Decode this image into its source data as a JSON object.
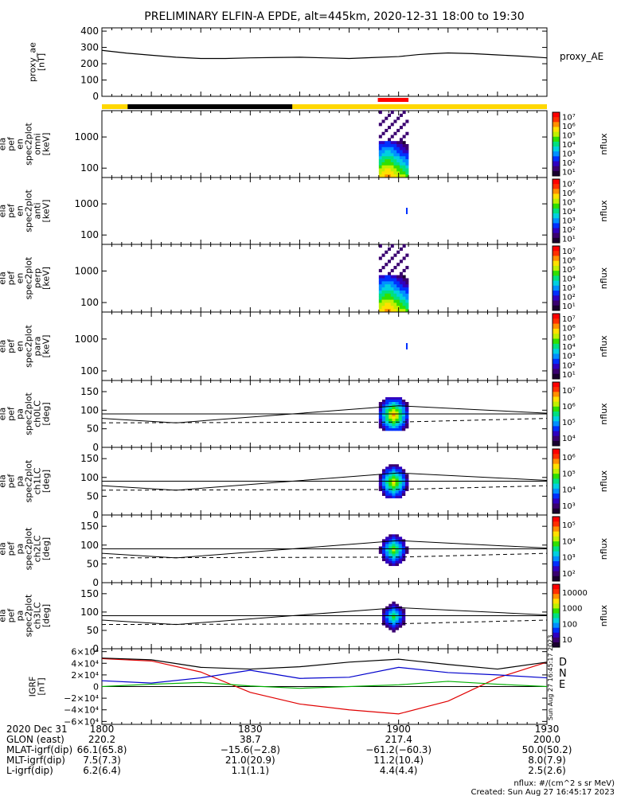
{
  "title": "PRELIMINARY ELFIN-A EPDE, alt=445km, 2020-12-31 18:00 to 19:30",
  "colors": {
    "quality_yellow": "#ffd700",
    "quality_black": "#000000",
    "science_red": "#ff0000",
    "igrf_D": "#e00000",
    "igrf_N": "#0000cc",
    "igrf_E": "#00b000",
    "colorbar": [
      "#1a0030",
      "#3a0070",
      "#3000c0",
      "#0030ff",
      "#0090ff",
      "#00d0e0",
      "#00e080",
      "#30e000",
      "#c0f000",
      "#ffe000",
      "#ff9000",
      "#ff3000",
      "#ff0000"
    ]
  },
  "chart_data": [
    {
      "type": "line",
      "panel": "proxy_ae",
      "ylabel": "proxy_ae [nT]",
      "legend": "proxy_AE",
      "ylim": [
        0,
        420
      ],
      "yticks": [
        "400",
        "300",
        "200",
        "100",
        "0"
      ],
      "x_minutes": [
        0,
        5,
        10,
        15,
        20,
        25,
        30,
        35,
        40,
        45,
        50,
        55,
        60,
        62,
        64,
        66,
        70,
        75,
        80,
        85,
        90
      ],
      "values": [
        282,
        265,
        252,
        240,
        232,
        232,
        236,
        238,
        240,
        236,
        232,
        238,
        244,
        250,
        256,
        260,
        266,
        262,
        254,
        246,
        236
      ]
    },
    {
      "type": "heatmap",
      "panel": "spec-omni",
      "ylabel": [
        "ela",
        "pef",
        "en",
        "spec2plot",
        "omni",
        "[keV]"
      ],
      "yscale": "log",
      "yticks": [
        "1000",
        "100"
      ],
      "colorbar_label": "nflux",
      "colorbar_ticks": [
        "10⁷",
        "10⁶",
        "10⁵",
        "10⁴",
        "10³",
        "10²",
        "10¹"
      ],
      "data_window_minutes": [
        56,
        62
      ]
    },
    {
      "type": "heatmap",
      "panel": "spec-anti",
      "ylabel": [
        "ela",
        "pef",
        "en",
        "spec2plot",
        "anti",
        "[keV]"
      ],
      "yscale": "log",
      "yticks": [
        "1000",
        "100"
      ],
      "colorbar_label": "nflux",
      "colorbar_ticks": [
        "10⁷",
        "10⁶",
        "10⁵",
        "10⁴",
        "10³",
        "10²",
        "10¹"
      ],
      "data_window_minutes": [
        61.5,
        61.7
      ]
    },
    {
      "type": "heatmap",
      "panel": "spec-perp",
      "ylabel": [
        "ela",
        "pef",
        "en",
        "spec2plot",
        "perp",
        "[keV]"
      ],
      "yscale": "log",
      "yticks": [
        "1000",
        "100"
      ],
      "colorbar_label": "nflux",
      "colorbar_ticks": [
        "10⁷",
        "10⁶",
        "10⁵",
        "10⁴",
        "10³",
        "10²",
        "10¹"
      ],
      "data_window_minutes": [
        56,
        62
      ]
    },
    {
      "type": "heatmap",
      "panel": "spec-para",
      "ylabel": [
        "ela",
        "pef",
        "en",
        "spec2plot",
        "para",
        "[keV]"
      ],
      "yscale": "log",
      "yticks": [
        "1000",
        "100"
      ],
      "colorbar_label": "nflux",
      "colorbar_ticks": [
        "10⁷",
        "10⁶",
        "10⁵",
        "10⁴",
        "10³",
        "10²",
        "10¹"
      ],
      "data_window_minutes": [
        61.5,
        61.7
      ]
    },
    {
      "type": "heatmap",
      "panel": "pa-ch0LC",
      "ylabel": [
        "ela",
        "pef",
        "pa",
        "spec2plot",
        "ch0LC",
        "[deg]"
      ],
      "ylim": [
        0,
        180
      ],
      "yticks": [
        "150",
        "100",
        "50",
        "0"
      ],
      "colorbar_label": "nflux",
      "colorbar_ticks": [
        "10⁷",
        "10⁶",
        "10⁵",
        "10⁴"
      ],
      "data_window_minutes": [
        56,
        62
      ]
    },
    {
      "type": "heatmap",
      "panel": "pa-ch1LC",
      "ylabel": [
        "ela",
        "pef",
        "pa",
        "spec2plot",
        "ch1LC",
        "[deg]"
      ],
      "ylim": [
        0,
        180
      ],
      "yticks": [
        "150",
        "100",
        "50",
        "0"
      ],
      "colorbar_label": "nflux",
      "colorbar_ticks": [
        "10⁶",
        "10⁵",
        "10⁴",
        "10³"
      ],
      "data_window_minutes": [
        56,
        62
      ]
    },
    {
      "type": "heatmap",
      "panel": "pa-ch2LC",
      "ylabel": [
        "ela",
        "pef",
        "pa",
        "spec2plot",
        "ch2LC",
        "[deg]"
      ],
      "ylim": [
        0,
        180
      ],
      "yticks": [
        "150",
        "100",
        "50",
        "0"
      ],
      "colorbar_label": "nflux",
      "colorbar_ticks": [
        "10⁵",
        "10⁴",
        "10³",
        "10²"
      ],
      "data_window_minutes": [
        56,
        62
      ]
    },
    {
      "type": "heatmap",
      "panel": "pa-ch3LC",
      "ylabel": [
        "ela",
        "pef",
        "pa",
        "spec2plot",
        "ch3LC",
        "[deg]"
      ],
      "ylim": [
        0,
        180
      ],
      "yticks": [
        "150",
        "100",
        "50",
        "0"
      ],
      "colorbar_label": "nflux",
      "colorbar_ticks": [
        "10000",
        "1000",
        "100",
        "10"
      ],
      "data_window_minutes": [
        56,
        62
      ]
    },
    {
      "type": "line",
      "panel": "igrf",
      "ylabel": [
        "IGRF",
        "[nT]"
      ],
      "ylim": [
        -65000,
        65000
      ],
      "yticks": [
        "6×10⁴",
        "4×10⁴",
        "2×10⁴",
        "0",
        "−2×10⁴",
        "−4×10⁴",
        "−6×10⁴"
      ],
      "x_minutes": [
        0,
        10,
        20,
        30,
        40,
        50,
        60,
        70,
        80,
        90
      ],
      "series": [
        {
          "name": "D",
          "values": [
            48000,
            44000,
            25000,
            -10000,
            -30000,
            -40000,
            -47000,
            -25000,
            15000,
            42000
          ]
        },
        {
          "name": "N",
          "values": [
            10000,
            6000,
            15000,
            28000,
            14000,
            16000,
            33000,
            24000,
            20000,
            15000
          ]
        },
        {
          "name": "E",
          "values": [
            0,
            4000,
            7000,
            1000,
            -3000,
            0,
            3000,
            9000,
            4000,
            0
          ]
        }
      ],
      "total_B": [
        49000,
        46000,
        33000,
        30000,
        34000,
        42000,
        47000,
        38000,
        30000,
        42000
      ],
      "side_stamp": "Sun Aug 27 16:45:17 2023"
    }
  ],
  "xaxis": {
    "tick_labels": [
      "1800",
      "1830",
      "1900",
      "1930"
    ],
    "rows": [
      {
        "label": "2020 Dec 31",
        "values": [
          "1800",
          "1830",
          "1900",
          "1930"
        ]
      },
      {
        "label": "GLON (east)",
        "values": [
          "220.2",
          "38.7",
          "217.4",
          "200.0"
        ]
      },
      {
        "label": "MLAT-igrf(dip)",
        "values": [
          "66.1(65.8)",
          "−15.6(−2.8)",
          "−61.2(−60.3)",
          "50.0(50.2)"
        ]
      },
      {
        "label": "MLT-igrf(dip)",
        "values": [
          "7.5(7.3)",
          "21.0(20.9)",
          "11.2(10.4)",
          "8.0(7.9)"
        ]
      },
      {
        "label": "L-igrf(dip)",
        "values": [
          "6.2(6.4)",
          "1.1(1.1)",
          "4.4(4.4)",
          "2.5(2.6)"
        ]
      }
    ]
  },
  "footer": {
    "units": "nflux: #/(cm^2 s sr MeV)",
    "created": "Created: Sun Aug 27 16:45:17 2023"
  }
}
